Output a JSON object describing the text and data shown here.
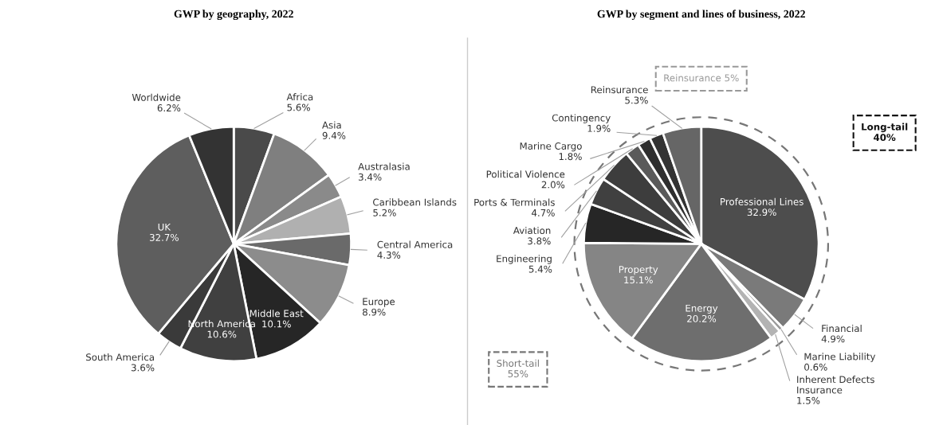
{
  "chart_data": [
    {
      "type": "pie",
      "title": "GWP by geography, 2022",
      "categories": [
        "Africa",
        "Asia",
        "Australasia",
        "Caribbean Islands",
        "Central America",
        "Europe",
        "Middle East",
        "North America",
        "South America",
        "UK",
        "Worldwide"
      ],
      "values": [
        5.6,
        9.4,
        3.4,
        5.2,
        4.3,
        8.9,
        10.1,
        10.6,
        3.6,
        32.7,
        6.2
      ],
      "value_labels": [
        "5.6%",
        "9.4%",
        "3.4%",
        "5.2%",
        "4.3%",
        "8.9%",
        "10.1%",
        "10.6%",
        "3.6%",
        "32.7%",
        "6.2%"
      ],
      "colors": [
        "#4a4a4a",
        "#7f7f7f",
        "#8a8a8a",
        "#b0b0b0",
        "#6a6a6a",
        "#8c8c8c",
        "#262626",
        "#404040",
        "#3a3a3a",
        "#5e5e5e",
        "#333333"
      ]
    },
    {
      "type": "pie",
      "title": "GWP by segment and lines of business, 2022",
      "categories": [
        "Professional Lines",
        "Financial",
        "Marine Liability",
        "Inherent Defects\nInsurance",
        "Energy",
        "Property",
        "Engineering",
        "Aviation",
        "Ports & Terminals",
        "Political Violence",
        "Marine Cargo",
        "Contingency",
        "Reinsurance"
      ],
      "values": [
        32.9,
        4.9,
        0.6,
        1.5,
        20.2,
        15.1,
        5.4,
        3.8,
        4.7,
        2.0,
        1.8,
        1.9,
        5.3
      ],
      "value_labels": [
        "32.9%",
        "4.9%",
        "0.6%",
        "1.5%",
        "20.2%",
        "15.1%",
        "5.4%",
        "3.8%",
        "4.7%",
        "2.0%",
        "1.8%",
        "1.9%",
        "5.3%"
      ],
      "colors": [
        "#4d4d4d",
        "#7a7a7a",
        "#999999",
        "#b3b3b3",
        "#6e6e6e",
        "#858585",
        "#262626",
        "#404040",
        "#3d3d3d",
        "#5a5a5a",
        "#2e2e2e",
        "#333333",
        "#666666"
      ],
      "annotations": [
        "Reinsurance 5%",
        "Long-tail\n40%",
        "Short-tail\n55%"
      ]
    }
  ]
}
